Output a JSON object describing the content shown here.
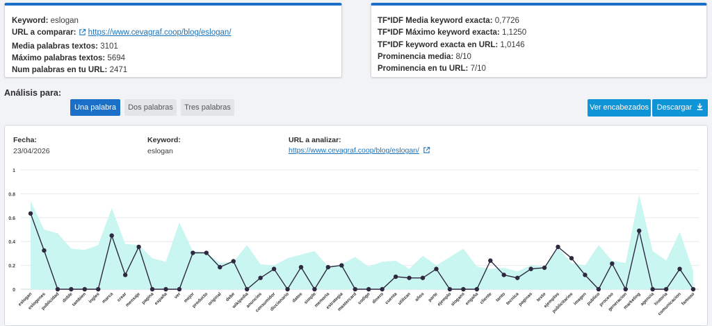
{
  "summary_left": {
    "keyword_label": "Keyword:",
    "keyword_value": "eslogan",
    "url_label": "URL a comparar:",
    "url_value": "https://www.cevagraf.coop/blog/eslogan/",
    "media_label": "Media palabras textos:",
    "media_value": "3101",
    "max_label": "Máximo palabras textos:",
    "max_value": "5694",
    "num_label": "Num palabras en tu URL:",
    "num_value": "2471"
  },
  "summary_right": {
    "tf_media_label": "TF*IDF Media keyword exacta:",
    "tf_media_value": "0,7726",
    "tf_max_label": "TF*IDF Máximo keyword exacta:",
    "tf_max_value": "1,1250",
    "tf_url_label": "TF*IDF keyword exacta en URL:",
    "tf_url_value": "1,0146",
    "prom_media_label": "Prominencia media:",
    "prom_media_value": "8/10",
    "prom_url_label": "Prominencia en tu URL:",
    "prom_url_value": "7/10"
  },
  "analysis": {
    "title": "Análisis para:",
    "tabs": [
      "Una palabra",
      "Dos palabras",
      "Tres palabras"
    ],
    "active_tab": "Una palabra",
    "ver_label": "Ver encabezados",
    "download_label": "Descargar"
  },
  "details": {
    "fecha_label": "Fecha:",
    "fecha_value": "23/04/2026",
    "keyword_label": "Keyword:",
    "keyword_value": "eslogan",
    "url_label": "URL a analizar:",
    "url_value": "https://www.cevagraf.coop/blog/eslogan/"
  },
  "colors": {
    "accent": "#1b6fc6",
    "button": "#0f94d6",
    "area": "#c9f6f0",
    "line": "#2e2840"
  },
  "chart_data": {
    "type": "line",
    "ylim": [
      0,
      1
    ],
    "y_ticks": [
      "1",
      "0.8",
      "0.6",
      "0.4",
      "0.2",
      "0"
    ],
    "x": [
      "eslogan",
      "eslogenes",
      "publicidad",
      "doble",
      "tambien",
      "ingles",
      "marca",
      "crear",
      "mensaje",
      "pagina",
      "españa",
      "ver",
      "mejor",
      "producto",
      "original",
      "debe",
      "wikipedia",
      "anuncios",
      "consumidor",
      "diccionario",
      "datos",
      "simple",
      "memoria",
      "estrategia",
      "mastercard",
      "codigo",
      "dinero",
      "cuenta",
      "utilizan",
      "años",
      "parte",
      "ejemplo",
      "slogans",
      "engaña",
      "cliente",
      "tanto",
      "tecnica",
      "paginas",
      "texto",
      "ejemplos",
      "publicitarios",
      "imagen",
      "publico",
      "proceso",
      "generacion",
      "marketing",
      "agencia",
      "historia",
      "comunicacion",
      "famoso"
    ],
    "series": [
      {
        "type": "area",
        "values": [
          0.74,
          0.5,
          0.47,
          0.34,
          0.33,
          0.37,
          0.68,
          0.38,
          0.37,
          0.26,
          0.23,
          0.56,
          0.32,
          0.31,
          0.22,
          0.23,
          0.37,
          0.21,
          0.2,
          0.26,
          0.29,
          0.32,
          0.19,
          0.21,
          0.27,
          0.19,
          0.23,
          0.24,
          0.17,
          0.28,
          0.2,
          0.27,
          0.34,
          0.19,
          0.17,
          0.18,
          0.15,
          0.2,
          0.19,
          0.35,
          0.22,
          0.2,
          0.37,
          0.24,
          0.22,
          0.79,
          0.32,
          0.24,
          0.48,
          0.15
        ]
      },
      {
        "type": "line",
        "values": [
          0.635,
          0.325,
          0,
          0,
          0,
          0,
          0.45,
          0.12,
          0.355,
          0,
          0,
          0,
          0.305,
          0.305,
          0.185,
          0.235,
          0,
          0.095,
          0.17,
          0,
          0.185,
          0,
          0.185,
          0.2,
          0,
          0,
          0,
          0.105,
          0.095,
          0.095,
          0.17,
          0,
          0,
          0,
          0.24,
          0.12,
          0.095,
          0.17,
          0.18,
          0.355,
          0.26,
          0.12,
          0,
          0.215,
          0,
          0.49,
          0,
          0,
          0.17,
          0
        ]
      }
    ]
  }
}
